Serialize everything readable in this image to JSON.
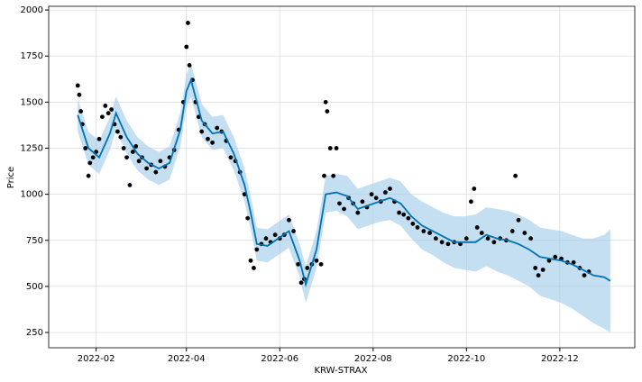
{
  "chart_data": {
    "type": "forecast",
    "xlabel": "KRW-STRAX",
    "ylabel": "Price",
    "xlim": [
      "2022-01-01",
      "2023-01-19"
    ],
    "ylim": [
      167,
      2020
    ],
    "xticks": [
      {
        "value": "2022-02-01",
        "label": "2022-02"
      },
      {
        "value": "2022-04-01",
        "label": "2022-04"
      },
      {
        "value": "2022-06-01",
        "label": "2022-06"
      },
      {
        "value": "2022-08-01",
        "label": "2022-08"
      },
      {
        "value": "2022-10-01",
        "label": "2022-10"
      },
      {
        "value": "2022-12-01",
        "label": "2022-12"
      }
    ],
    "yticks": [
      250,
      500,
      750,
      1000,
      1250,
      1500,
      1750,
      2000
    ],
    "grid": true,
    "observed": {
      "color": "#000000",
      "x": [
        "2022-01-20",
        "2022-01-21",
        "2022-01-22",
        "2022-01-23",
        "2022-01-25",
        "2022-01-27",
        "2022-01-28",
        "2022-01-30",
        "2022-02-01",
        "2022-02-03",
        "2022-02-05",
        "2022-02-07",
        "2022-02-09",
        "2022-02-11",
        "2022-02-13",
        "2022-02-15",
        "2022-02-17",
        "2022-02-19",
        "2022-02-21",
        "2022-02-23",
        "2022-02-25",
        "2022-02-27",
        "2022-03-01",
        "2022-03-03",
        "2022-03-06",
        "2022-03-09",
        "2022-03-12",
        "2022-03-15",
        "2022-03-18",
        "2022-03-21",
        "2022-03-24",
        "2022-03-27",
        "2022-03-30",
        "2022-04-01",
        "2022-04-02",
        "2022-04-03",
        "2022-04-05",
        "2022-04-07",
        "2022-04-09",
        "2022-04-11",
        "2022-04-13",
        "2022-04-15",
        "2022-04-18",
        "2022-04-21",
        "2022-04-24",
        "2022-04-27",
        "2022-04-30",
        "2022-05-03",
        "2022-05-06",
        "2022-05-09",
        "2022-05-11",
        "2022-05-13",
        "2022-05-15",
        "2022-05-17",
        "2022-05-20",
        "2022-05-23",
        "2022-05-26",
        "2022-05-29",
        "2022-06-01",
        "2022-06-04",
        "2022-06-07",
        "2022-06-10",
        "2022-06-13",
        "2022-06-15",
        "2022-06-17",
        "2022-06-19",
        "2022-06-22",
        "2022-06-25",
        "2022-06-28",
        "2022-06-30",
        "2022-07-01",
        "2022-07-02",
        "2022-07-04",
        "2022-07-06",
        "2022-07-08",
        "2022-07-10",
        "2022-07-13",
        "2022-07-16",
        "2022-07-19",
        "2022-07-22",
        "2022-07-25",
        "2022-07-28",
        "2022-07-31",
        "2022-08-03",
        "2022-08-06",
        "2022-08-09",
        "2022-08-12",
        "2022-08-15",
        "2022-08-18",
        "2022-08-21",
        "2022-08-24",
        "2022-08-27",
        "2022-08-30",
        "2022-09-03",
        "2022-09-07",
        "2022-09-11",
        "2022-09-15",
        "2022-09-19",
        "2022-09-23",
        "2022-09-27",
        "2022-10-01",
        "2022-10-04",
        "2022-10-06",
        "2022-10-08",
        "2022-10-11",
        "2022-10-15",
        "2022-10-19",
        "2022-10-23",
        "2022-10-27",
        "2022-10-31",
        "2022-11-02",
        "2022-11-04",
        "2022-11-08",
        "2022-11-12",
        "2022-11-15",
        "2022-11-17",
        "2022-11-20",
        "2022-11-24",
        "2022-11-28",
        "2022-12-02",
        "2022-12-06",
        "2022-12-10",
        "2022-12-14",
        "2022-12-17",
        "2022-12-20"
      ],
      "values": [
        1590,
        1540,
        1450,
        1380,
        1250,
        1100,
        1170,
        1200,
        1230,
        1300,
        1420,
        1480,
        1440,
        1460,
        1380,
        1340,
        1310,
        1250,
        1200,
        1050,
        1230,
        1260,
        1180,
        1200,
        1140,
        1160,
        1120,
        1180,
        1150,
        1200,
        1240,
        1350,
        1500,
        1800,
        1930,
        1700,
        1620,
        1500,
        1420,
        1340,
        1380,
        1300,
        1280,
        1360,
        1340,
        1290,
        1200,
        1180,
        1120,
        1000,
        870,
        640,
        600,
        700,
        730,
        760,
        740,
        780,
        760,
        780,
        860,
        800,
        620,
        520,
        540,
        600,
        620,
        640,
        620,
        1100,
        1500,
        1450,
        1250,
        1100,
        1250,
        950,
        920,
        980,
        950,
        900,
        960,
        930,
        1000,
        980,
        960,
        1010,
        1030,
        960,
        900,
        890,
        870,
        840,
        820,
        800,
        790,
        760,
        740,
        730,
        740,
        730,
        760,
        960,
        1030,
        820,
        790,
        760,
        740,
        760,
        750,
        800,
        1100,
        860,
        790,
        760,
        600,
        560,
        590,
        640,
        660,
        650,
        630,
        630,
        600,
        560,
        580
      ]
    },
    "forecast": {
      "color": "#0072b2",
      "band_color": "#9ecae9",
      "x": [
        "2022-01-20",
        "2022-01-27",
        "2022-02-03",
        "2022-02-10",
        "2022-02-14",
        "2022-02-21",
        "2022-02-28",
        "2022-03-07",
        "2022-03-14",
        "2022-03-21",
        "2022-03-28",
        "2022-04-01",
        "2022-04-04",
        "2022-04-11",
        "2022-04-18",
        "2022-04-25",
        "2022-05-02",
        "2022-05-09",
        "2022-05-13",
        "2022-05-17",
        "2022-05-24",
        "2022-05-31",
        "2022-06-07",
        "2022-06-14",
        "2022-06-18",
        "2022-06-25",
        "2022-07-01",
        "2022-07-08",
        "2022-07-15",
        "2022-07-22",
        "2022-07-29",
        "2022-08-05",
        "2022-08-12",
        "2022-08-19",
        "2022-08-26",
        "2022-09-02",
        "2022-09-09",
        "2022-09-16",
        "2022-09-23",
        "2022-09-30",
        "2022-10-07",
        "2022-10-14",
        "2022-10-21",
        "2022-10-28",
        "2022-11-04",
        "2022-11-11",
        "2022-11-18",
        "2022-11-25",
        "2022-12-02",
        "2022-12-09",
        "2022-12-16",
        "2022-12-23",
        "2022-12-30",
        "2023-01-03"
      ],
      "values": [
        1430,
        1250,
        1200,
        1330,
        1440,
        1310,
        1220,
        1170,
        1140,
        1170,
        1350,
        1560,
        1620,
        1400,
        1330,
        1340,
        1220,
        1050,
        900,
        730,
        720,
        760,
        800,
        640,
        510,
        700,
        1000,
        1010,
        990,
        920,
        940,
        960,
        980,
        950,
        880,
        830,
        800,
        770,
        740,
        740,
        740,
        780,
        760,
        750,
        730,
        700,
        660,
        650,
        640,
        620,
        590,
        560,
        550,
        530
      ],
      "lower": [
        1340,
        1160,
        1110,
        1240,
        1350,
        1220,
        1130,
        1080,
        1050,
        1080,
        1260,
        1470,
        1530,
        1310,
        1240,
        1250,
        1130,
        960,
        810,
        640,
        630,
        670,
        710,
        550,
        410,
        600,
        900,
        910,
        880,
        810,
        830,
        850,
        860,
        830,
        760,
        700,
        670,
        630,
        600,
        590,
        580,
        610,
        580,
        560,
        530,
        500,
        450,
        430,
        410,
        380,
        340,
        300,
        270,
        250
      ],
      "upper": [
        1520,
        1340,
        1290,
        1420,
        1530,
        1400,
        1310,
        1260,
        1230,
        1260,
        1440,
        1650,
        1710,
        1490,
        1420,
        1430,
        1310,
        1140,
        990,
        820,
        810,
        850,
        890,
        730,
        610,
        800,
        1100,
        1110,
        1100,
        1030,
        1050,
        1070,
        1090,
        1070,
        1000,
        960,
        930,
        900,
        880,
        880,
        890,
        930,
        920,
        910,
        890,
        860,
        820,
        810,
        800,
        780,
        760,
        760,
        780,
        810
      ]
    }
  }
}
